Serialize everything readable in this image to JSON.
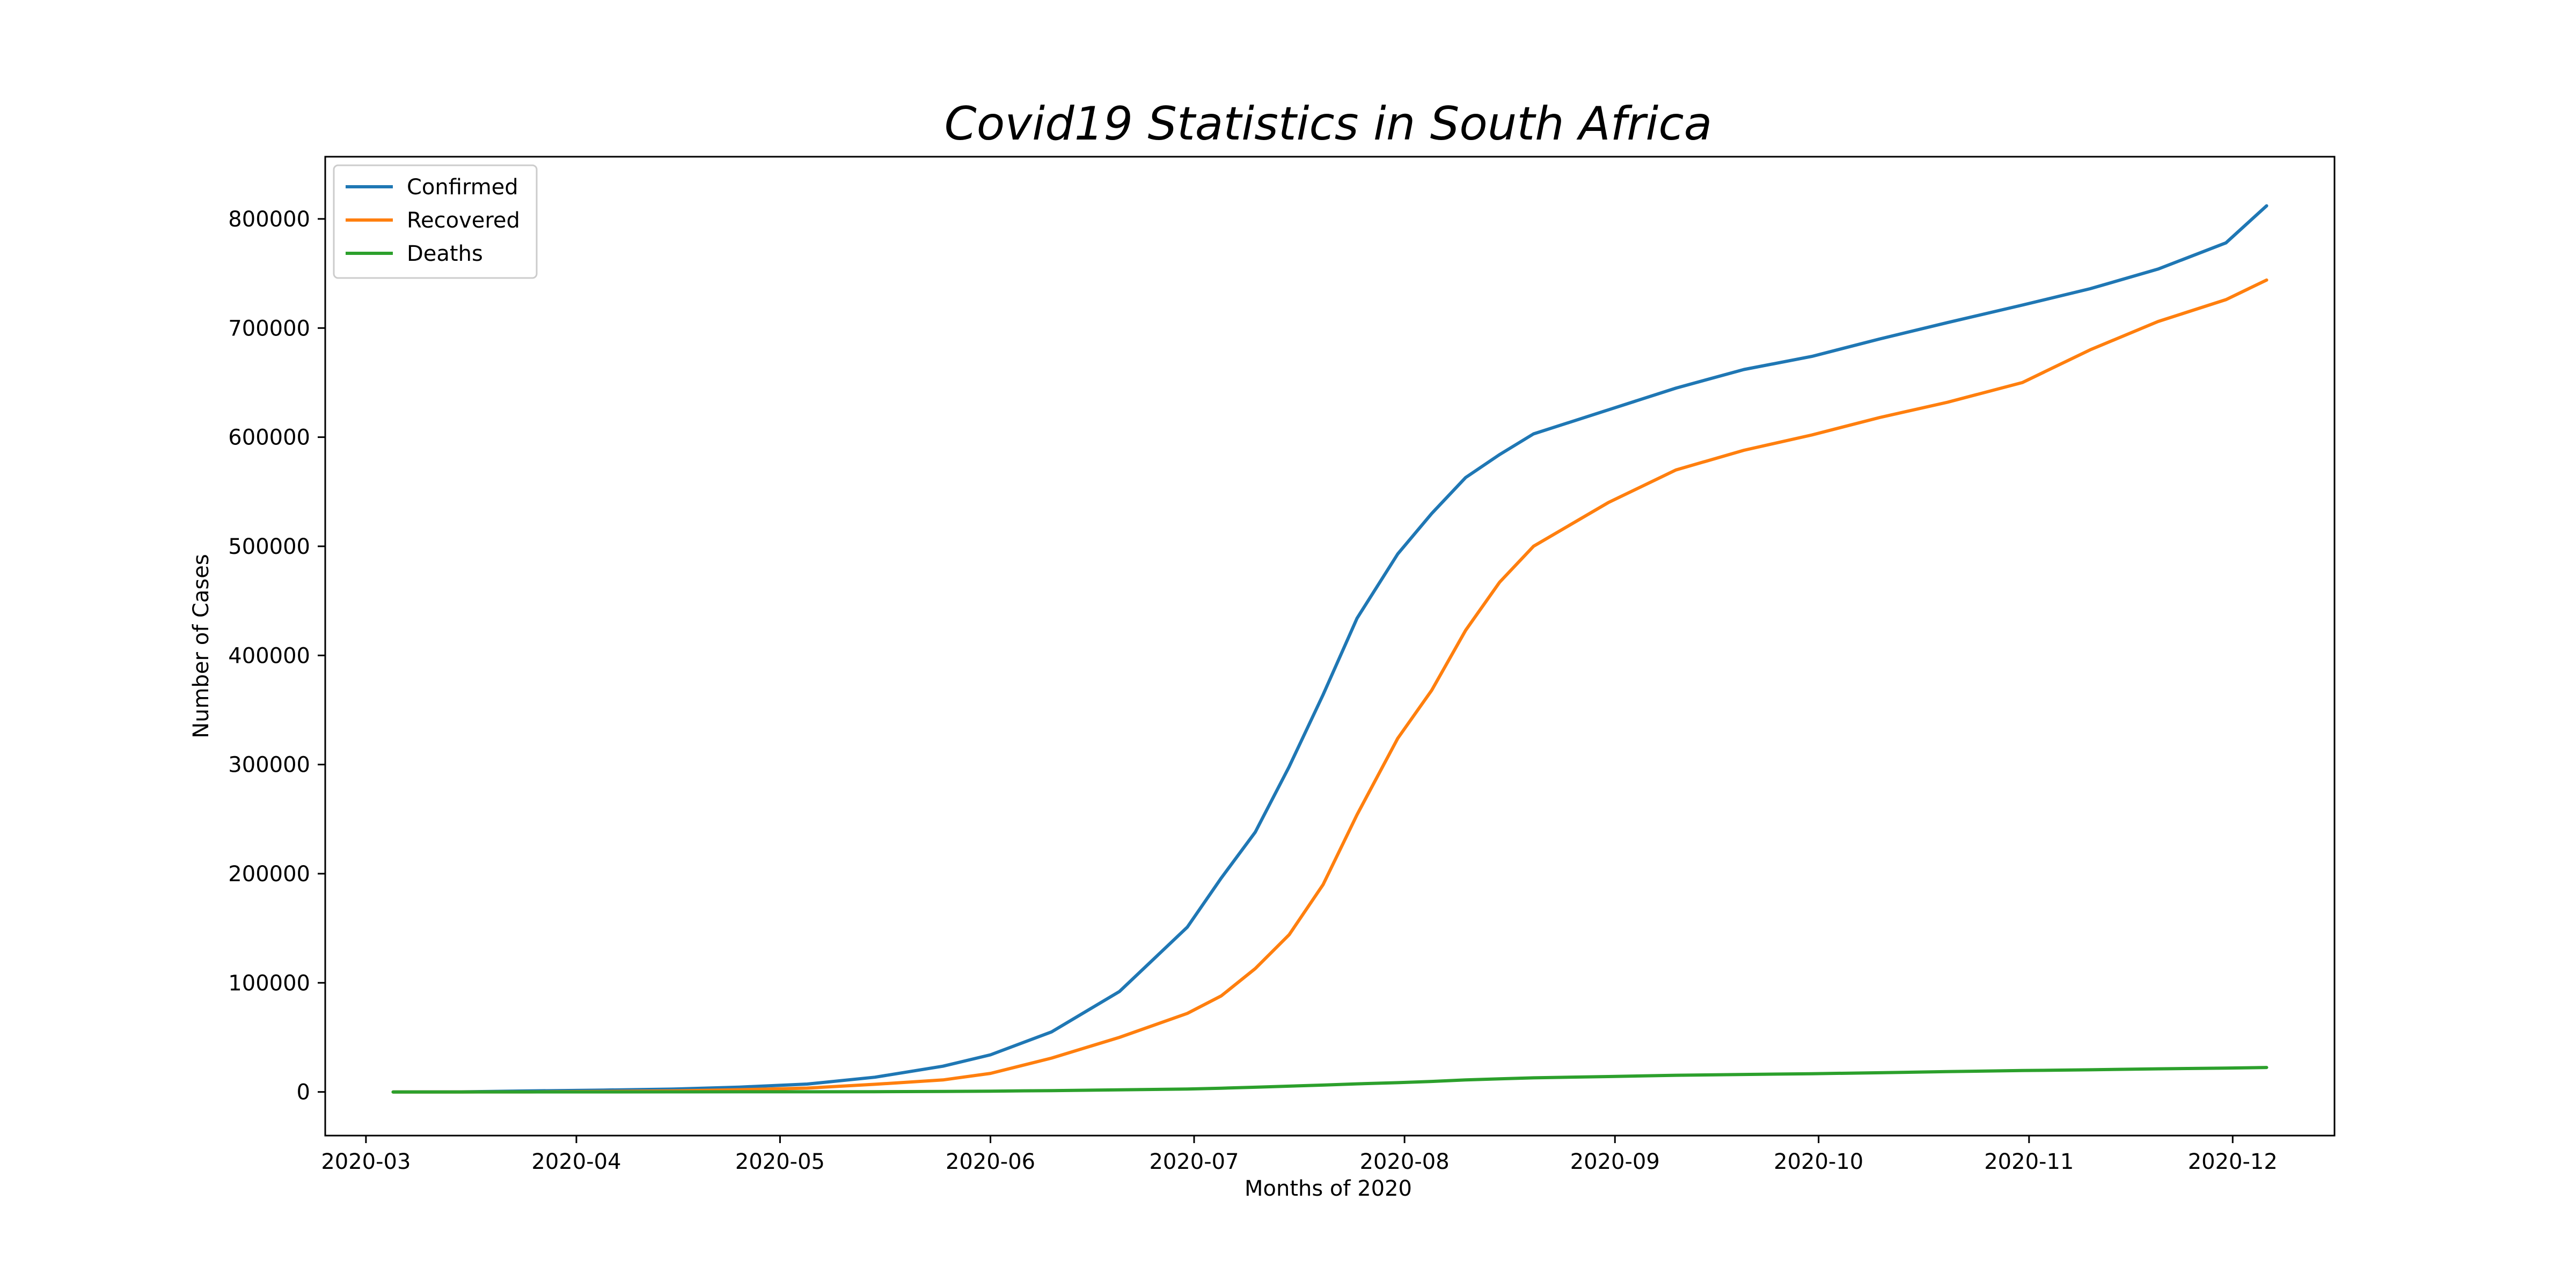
{
  "chart_data": {
    "type": "line",
    "title": "Covid19 Statistics in South Africa",
    "xlabel": "Months of 2020",
    "ylabel": "Number of Cases",
    "x_tick_labels": [
      "2020-03",
      "2020-04",
      "2020-05",
      "2020-06",
      "2020-07",
      "2020-08",
      "2020-09",
      "2020-10",
      "2020-11",
      "2020-12"
    ],
    "y_ticks": [
      0,
      100000,
      200000,
      300000,
      400000,
      500000,
      600000,
      700000,
      800000
    ],
    "y_tick_labels": [
      "0",
      "100000",
      "200000",
      "300000",
      "400000",
      "500000",
      "600000",
      "700000",
      "800000"
    ],
    "xlim": [
      "2020-02-24",
      "2020-12-16"
    ],
    "ylim": [
      -40000,
      857000
    ],
    "grid": false,
    "legend_position": "top-left",
    "x": [
      "2020-03-05",
      "2020-03-15",
      "2020-03-25",
      "2020-04-05",
      "2020-04-15",
      "2020-04-25",
      "2020-05-05",
      "2020-05-15",
      "2020-05-25",
      "2020-06-01",
      "2020-06-10",
      "2020-06-20",
      "2020-06-30",
      "2020-07-05",
      "2020-07-10",
      "2020-07-15",
      "2020-07-20",
      "2020-07-25",
      "2020-07-31",
      "2020-08-05",
      "2020-08-10",
      "2020-08-15",
      "2020-08-20",
      "2020-08-31",
      "2020-09-10",
      "2020-09-20",
      "2020-09-30",
      "2020-10-10",
      "2020-10-20",
      "2020-10-31",
      "2020-11-10",
      "2020-11-20",
      "2020-11-30",
      "2020-12-06"
    ],
    "series": [
      {
        "name": "Confirmed",
        "color": "#1f77b4",
        "values": [
          1,
          60,
          900,
          1700,
          2600,
          4400,
          7200,
          13500,
          23600,
          34000,
          55000,
          92000,
          151000,
          196000,
          238000,
          298000,
          364000,
          434000,
          493000,
          530000,
          563000,
          584000,
          603000,
          625000,
          645000,
          662000,
          674000,
          690000,
          705000,
          721000,
          736000,
          754000,
          778000,
          812000
        ]
      },
      {
        "name": "Recovered",
        "color": "#ff7f0e",
        "values": [
          0,
          0,
          20,
          400,
          900,
          2000,
          3500,
          7000,
          11000,
          17000,
          31000,
          50000,
          72000,
          88000,
          113000,
          144000,
          190000,
          254000,
          324000,
          368000,
          423000,
          467000,
          500000,
          540000,
          570000,
          588000,
          602000,
          618000,
          632000,
          650000,
          680000,
          706000,
          726000,
          744000
        ]
      },
      {
        "name": "Deaths",
        "color": "#2ca02c",
        "values": [
          0,
          0,
          15,
          40,
          70,
          110,
          140,
          250,
          450,
          700,
          1200,
          1900,
          2700,
          3400,
          4300,
          5300,
          6300,
          7400,
          8500,
          9600,
          11000,
          12000,
          12900,
          14100,
          15300,
          16000,
          16700,
          17600,
          18600,
          19600,
          20300,
          21200,
          21800,
          22400
        ]
      }
    ]
  }
}
